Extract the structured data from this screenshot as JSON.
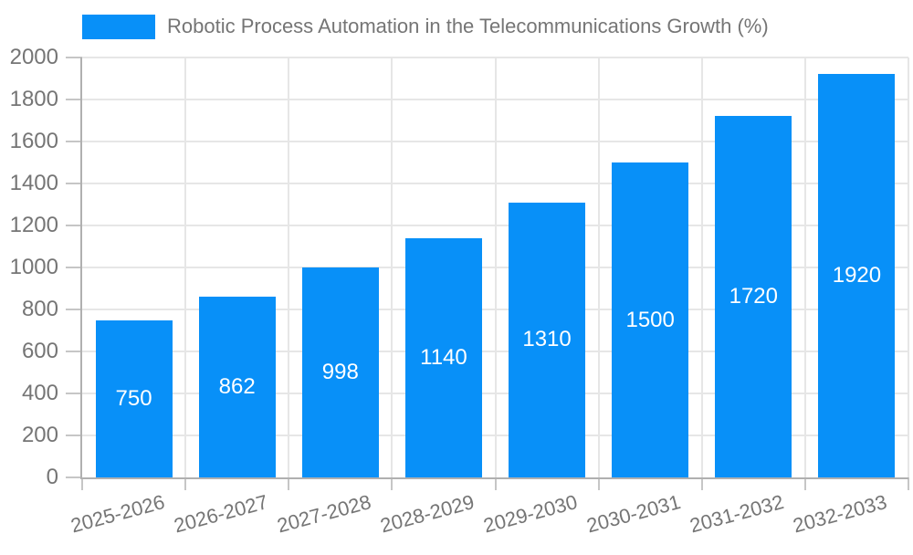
{
  "chart_data": {
    "type": "bar",
    "title": "Robotic Process Automation in the Telecommunications Growth (%)",
    "categories": [
      "2025-2026",
      "2026-2027",
      "2027-2028",
      "2028-2029",
      "2029-2030",
      "2030-2031",
      "2031-2032",
      "2032-2033"
    ],
    "values": [
      750,
      862,
      998,
      1140,
      1310,
      1500,
      1720,
      1920
    ],
    "xlabel": "",
    "ylabel": "",
    "ylim": [
      0,
      2000
    ],
    "ytick_step": 200,
    "ytick_labels": [
      "0",
      "200",
      "400",
      "600",
      "800",
      "1000",
      "1200",
      "1400",
      "1600",
      "1800",
      "2000"
    ],
    "grid": true,
    "legend_position": "top-left",
    "bar_color": "#0890f8",
    "value_label_color": "#ffffff",
    "axis_text_color": "#757575",
    "grid_color": "#e6e6e6",
    "tick_color": "#c6c6c6",
    "axis_line_color": "#b0b0b0",
    "background_color": "#ffffff"
  }
}
